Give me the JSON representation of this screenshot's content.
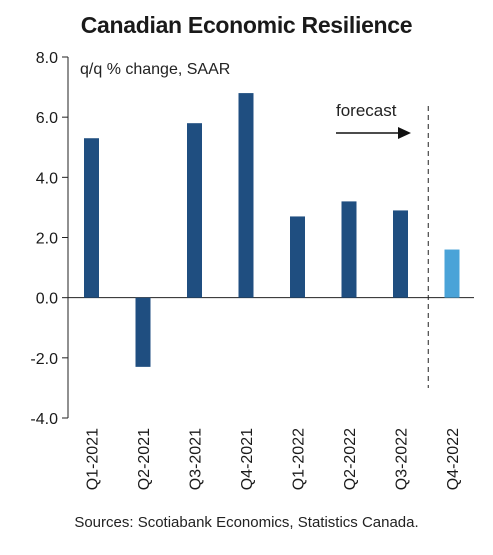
{
  "chart_data": {
    "type": "bar",
    "title": "Canadian Economic Resilience",
    "subtitle": "q/q % change, SAAR",
    "categories": [
      "Q1-2021",
      "Q2-2021",
      "Q3-2021",
      "Q4-2021",
      "Q1-2022",
      "Q2-2022",
      "Q3-2022",
      "Q4-2022"
    ],
    "values": [
      5.3,
      -2.3,
      5.8,
      6.8,
      2.7,
      3.2,
      2.9,
      1.6
    ],
    "forecast_from_category": "Q4-2022",
    "forecast_label": "forecast",
    "ylim": [
      -4.0,
      8.0
    ],
    "yticks": [
      "8.0",
      "6.0",
      "4.0",
      "2.0",
      "0.0",
      "-2.0",
      "-4.0"
    ],
    "grid": false,
    "colors": {
      "actual": "#1f4e80",
      "forecast": "#4aa3d8",
      "axis": "#222222"
    },
    "source": "Sources: Scotiabank Economics, Statistics Canada."
  }
}
